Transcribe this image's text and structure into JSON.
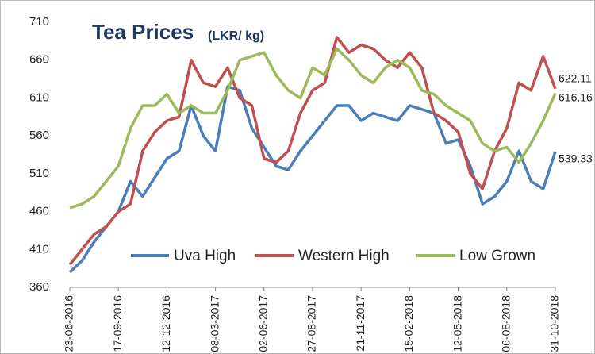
{
  "chart_data": {
    "type": "line",
    "title": "Tea Prices",
    "subtitle": "(LKR/ kg)",
    "categories": [
      "23-06-2016",
      null,
      null,
      null,
      "17-09-2016",
      null,
      null,
      null,
      "12-12-2016",
      null,
      null,
      null,
      "08-03-2017",
      null,
      null,
      null,
      "02-06-2017",
      null,
      null,
      null,
      "27-08-2017",
      null,
      null,
      null,
      "21-11-2017",
      null,
      null,
      null,
      "15-02-2018",
      null,
      null,
      null,
      "12-05-2018",
      null,
      null,
      null,
      "06-08-2018",
      null,
      null,
      null,
      "31-10-2018"
    ],
    "series": [
      {
        "name": "Uva High",
        "color": "#4a7ebb",
        "values": [
          380,
          395,
          420,
          440,
          460,
          500,
          480,
          505,
          530,
          540,
          600,
          560,
          540,
          625,
          620,
          570,
          545,
          520,
          515,
          540,
          560,
          580,
          600,
          600,
          580,
          590,
          585,
          580,
          600,
          595,
          590,
          550,
          555,
          520,
          470,
          480,
          500,
          540,
          500,
          490,
          539.33
        ]
      },
      {
        "name": "Western High",
        "color": "#c0504d",
        "values": [
          390,
          410,
          430,
          440,
          460,
          470,
          540,
          565,
          580,
          585,
          660,
          630,
          625,
          650,
          610,
          600,
          530,
          525,
          540,
          590,
          620,
          630,
          690,
          670,
          680,
          675,
          660,
          650,
          670,
          650,
          590,
          580,
          565,
          510,
          490,
          540,
          570,
          630,
          620,
          665,
          622.11
        ]
      },
      {
        "name": "Low Grown",
        "color": "#9bbb59",
        "values": [
          465,
          470,
          480,
          500,
          520,
          570,
          600,
          600,
          615,
          590,
          600,
          590,
          590,
          620,
          660,
          665,
          670,
          640,
          620,
          610,
          650,
          640,
          675,
          660,
          640,
          630,
          650,
          660,
          650,
          620,
          615,
          600,
          590,
          580,
          550,
          540,
          545,
          525,
          550,
          580,
          616.16
        ]
      }
    ],
    "ylim": [
      360,
      710
    ],
    "yticks": [
      360,
      410,
      460,
      510,
      560,
      610,
      660,
      710
    ],
    "legend": "bottom"
  }
}
